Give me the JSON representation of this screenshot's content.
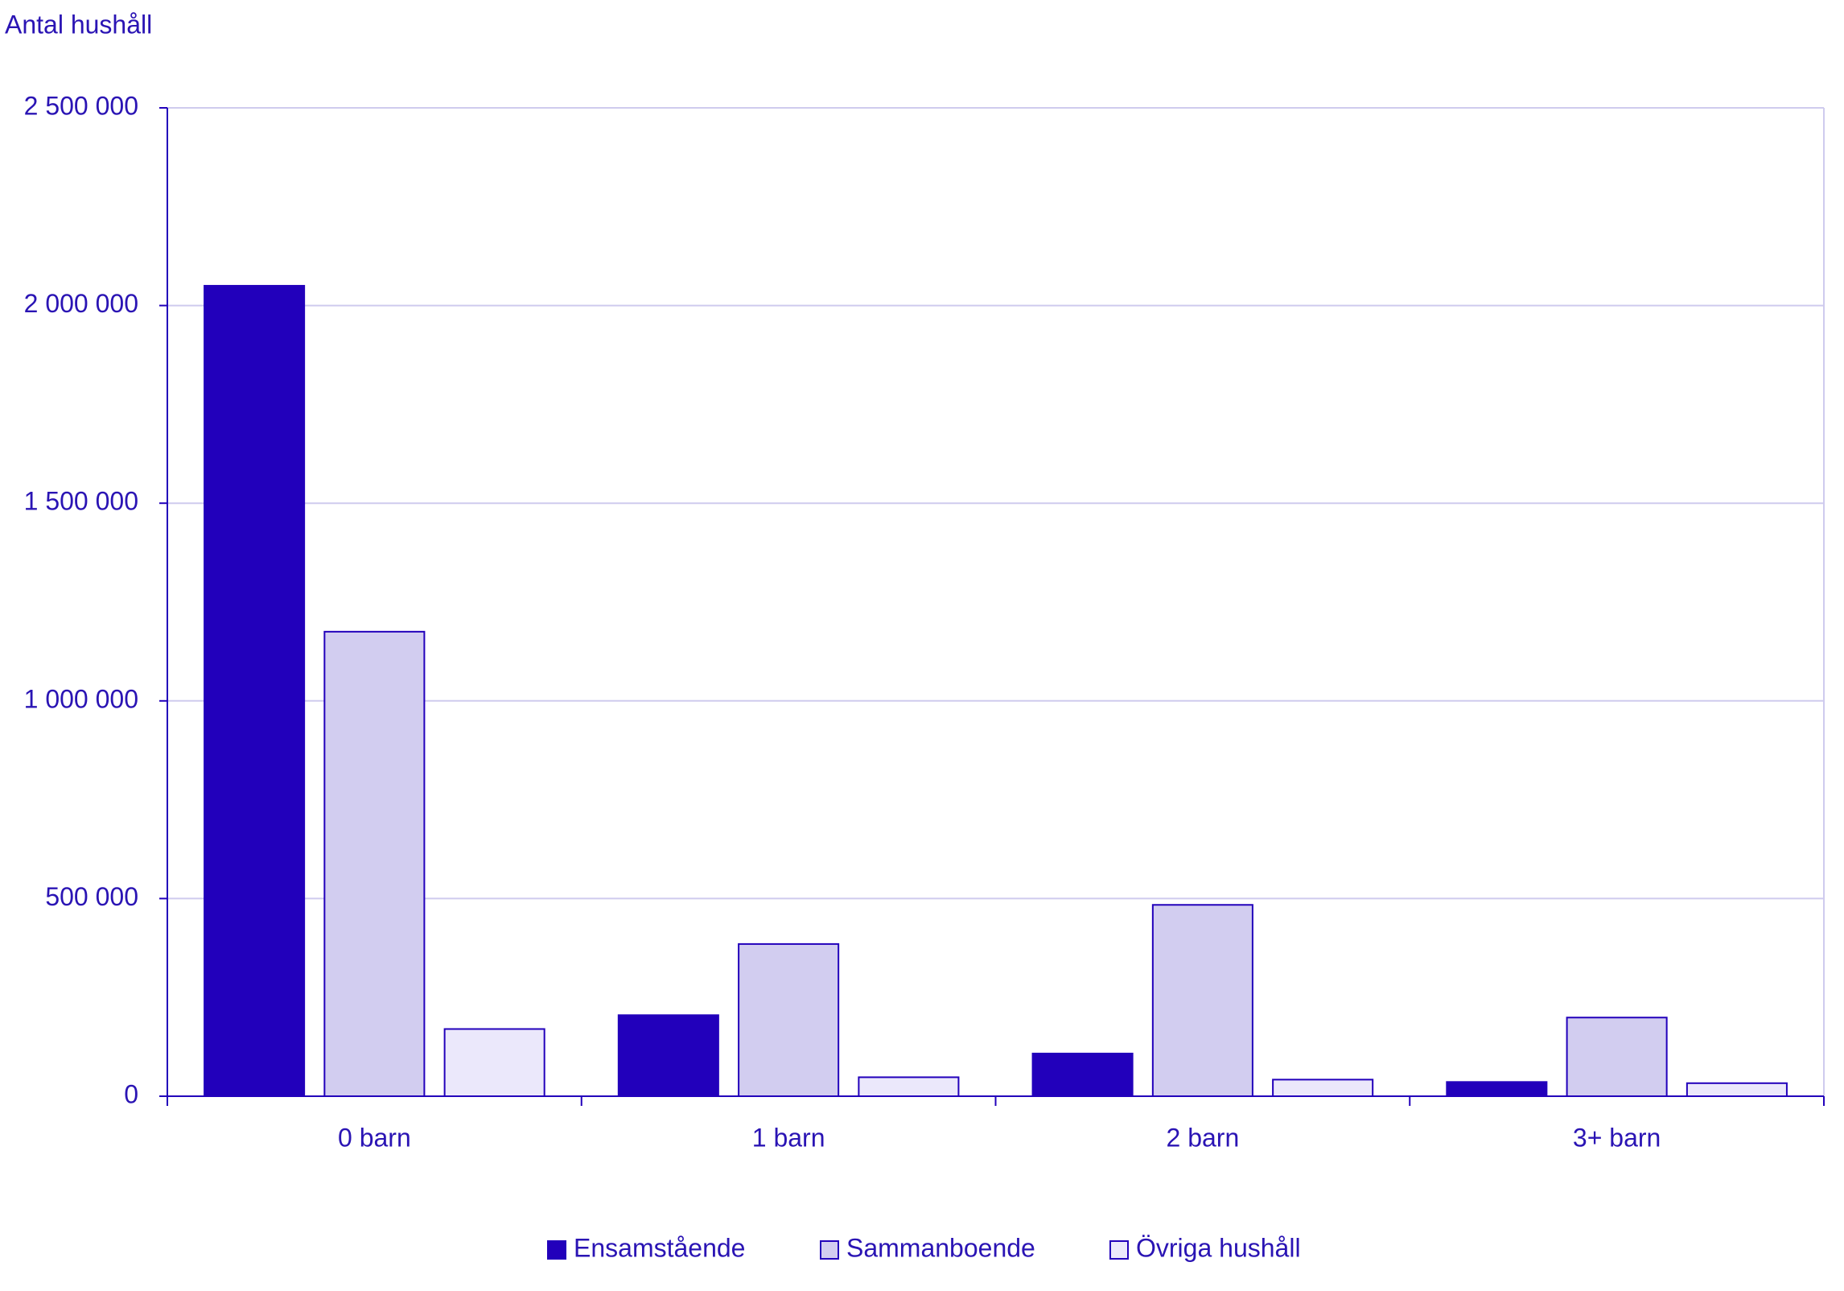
{
  "chart_data": {
    "type": "bar",
    "y_label": "Antal hushåll",
    "categories": [
      "0 barn",
      "1 barn",
      "2 barn",
      "3+ barn"
    ],
    "series": [
      {
        "name": "Ensamstående",
        "color": "#2200bb",
        "values": [
          2050000,
          205000,
          108000,
          36000
        ]
      },
      {
        "name": "Sammanboende",
        "color": "#d2cdf0",
        "values": [
          1175000,
          385000,
          484000,
          199000
        ]
      },
      {
        "name": "Övriga hushåll",
        "color": "#ebe8fb",
        "values": [
          170000,
          48000,
          42000,
          33000
        ]
      }
    ],
    "ylim": [
      0,
      2500000
    ],
    "yticks": [
      0,
      {
        "value": 500000,
        "label": "500 000"
      },
      {
        "value": 1000000,
        "label": "1 000 000"
      },
      {
        "value": 1500000,
        "label": "1 500 000"
      },
      {
        "value": 2000000,
        "label": "2 000 000"
      },
      {
        "value": 2500000,
        "label": "2 500 000"
      }
    ],
    "grid": true,
    "legend": "bottom"
  }
}
